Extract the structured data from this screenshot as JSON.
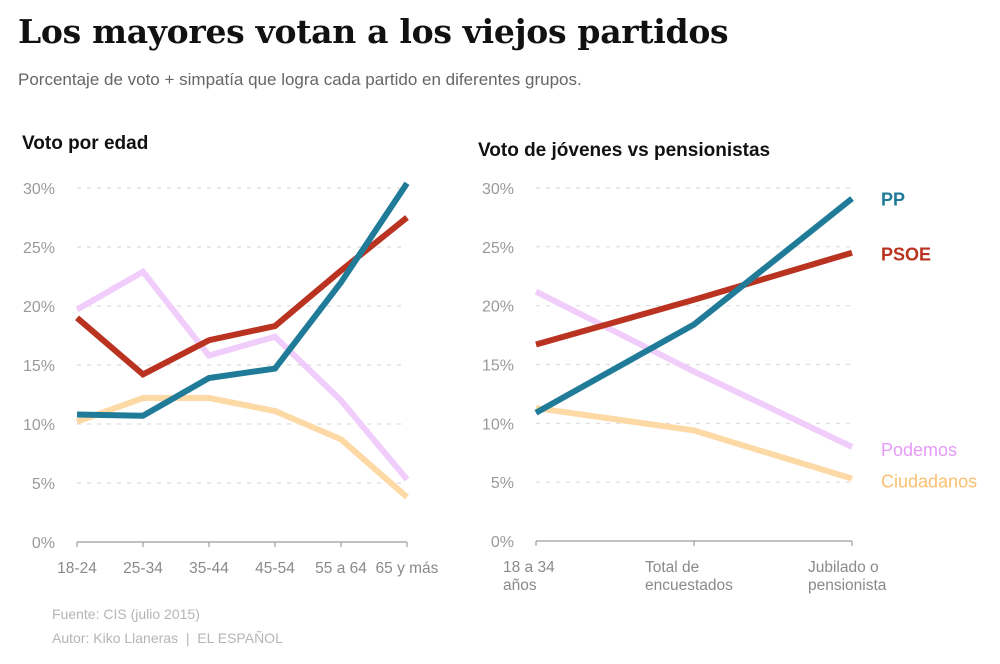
{
  "header": {
    "title": "Los mayores votan a los viejos partidos",
    "subtitle": "Porcentaje de voto + simpatía que logra cada partido en diferentes grupos."
  },
  "footer": {
    "source": "Fuente: CIS (julio 2015)",
    "author": "Autor: Kiko Llaneras  |  EL ESPAÑOL"
  },
  "chart_data": [
    {
      "type": "line",
      "title": "Voto por edad",
      "xlabel": "",
      "ylabel": "",
      "categories": [
        "18-24",
        "25-34",
        "35-44",
        "45-54",
        "55 a 64",
        "65 y más"
      ],
      "ylim": [
        0,
        30
      ],
      "yticks": [
        "0%",
        "5%",
        "10%",
        "15%",
        "20%",
        "25%",
        "30%"
      ],
      "grid": true,
      "legend": "none",
      "series": [
        {
          "name": "Ciudadanos",
          "color": "#fdd9a6",
          "values": [
            10.2,
            12.2,
            12.2,
            11.1,
            8.7,
            3.8
          ]
        },
        {
          "name": "Podemos",
          "color": "#f0cdfa",
          "values": [
            19.7,
            22.9,
            15.8,
            17.4,
            12.0,
            5.3
          ]
        },
        {
          "name": "PSOE",
          "color": "#b93320",
          "values": [
            19.0,
            14.2,
            17.1,
            18.3,
            23.0,
            27.5
          ]
        },
        {
          "name": "PP",
          "color": "#1f7b98",
          "values": [
            10.8,
            10.7,
            13.9,
            14.7,
            22.0,
            30.5
          ]
        }
      ]
    },
    {
      "type": "line",
      "title": "Voto de jóvenes vs pensionistas",
      "xlabel": "",
      "ylabel": "",
      "categories": [
        [
          "18 a 34",
          "años"
        ],
        [
          "Total de",
          "encuestados"
        ],
        [
          "Jubilado o",
          "pensionista"
        ]
      ],
      "ylim": [
        0,
        30
      ],
      "yticks": [
        "0%",
        "5%",
        "10%",
        "15%",
        "20%",
        "25%",
        "30%"
      ],
      "grid": true,
      "legend": "right (direct labels)",
      "series": [
        {
          "name": "Ciudadanos",
          "color": "#fdd9a6",
          "label_color": "#fbbf6e",
          "values": [
            11.3,
            9.4,
            5.3
          ]
        },
        {
          "name": "Podemos",
          "color": "#f0cdfa",
          "label_color": "#e59af7",
          "values": [
            21.2,
            14.4,
            8.0
          ]
        },
        {
          "name": "PSOE",
          "color": "#b93320",
          "label_color": "#b93320",
          "values": [
            16.7,
            20.5,
            24.5
          ]
        },
        {
          "name": "PP",
          "color": "#1f7b98",
          "label_color": "#1f7b98",
          "values": [
            10.9,
            18.4,
            29.1
          ]
        }
      ]
    }
  ]
}
